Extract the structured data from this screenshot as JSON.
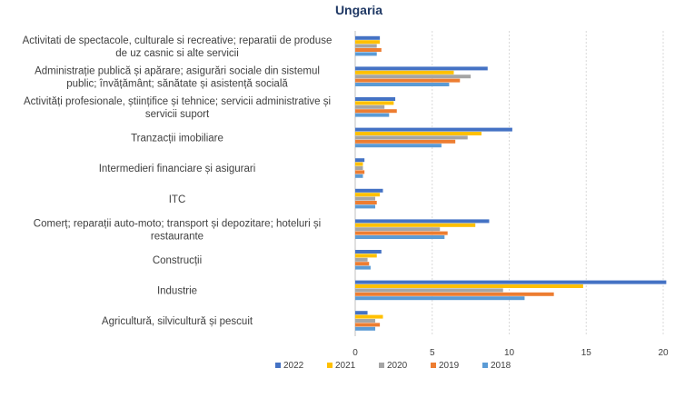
{
  "chart_data": {
    "type": "bar",
    "orientation": "horizontal",
    "title": "Ungaria",
    "xlabel": "",
    "ylabel": "",
    "xlim": [
      0,
      20
    ],
    "xticks": [
      0,
      5,
      10,
      15,
      20
    ],
    "grid": true,
    "legend_position": "bottom",
    "categories": [
      [
        "Activitati de spectacole, culturale si recreative; reparatii de produse",
        "de uz casnic si alte servicii"
      ],
      [
        "Administrație publică și apărare; asigurări sociale din sistemul",
        "public; învățământ; sănătate și asistență socială"
      ],
      [
        "Activități profesionale, științifice și tehnice; servicii administrative și",
        "servicii suport"
      ],
      [
        "Tranzacții imobiliare"
      ],
      [
        "Intermedieri financiare și asigurari"
      ],
      [
        "ITC"
      ],
      [
        "Comerț; reparații auto-moto; transport și depozitare; hoteluri și",
        "restaurante"
      ],
      [
        "Construcții"
      ],
      [
        "Industrie"
      ],
      [
        "Agricultură, silvicultură și pescuit"
      ]
    ],
    "series": [
      {
        "name": "2022",
        "color": "#4472c4",
        "values": [
          1.6,
          8.6,
          2.6,
          10.2,
          0.6,
          1.8,
          8.7,
          1.7,
          20.2,
          0.8
        ]
      },
      {
        "name": "2021",
        "color": "#ffc000",
        "values": [
          1.6,
          6.4,
          2.5,
          8.2,
          0.5,
          1.6,
          7.8,
          1.4,
          14.8,
          1.8
        ]
      },
      {
        "name": "2020",
        "color": "#a5a5a5",
        "values": [
          1.4,
          7.5,
          1.9,
          7.3,
          0.5,
          1.3,
          5.5,
          0.8,
          9.6,
          1.3
        ]
      },
      {
        "name": "2019",
        "color": "#ed7d31",
        "values": [
          1.7,
          6.8,
          2.7,
          6.5,
          0.6,
          1.4,
          6.0,
          0.9,
          12.9,
          1.6
        ]
      },
      {
        "name": "2018",
        "color": "#5b9bd5",
        "values": [
          1.4,
          6.1,
          2.2,
          5.6,
          0.5,
          1.3,
          5.8,
          1.0,
          11.0,
          1.3
        ]
      }
    ]
  }
}
